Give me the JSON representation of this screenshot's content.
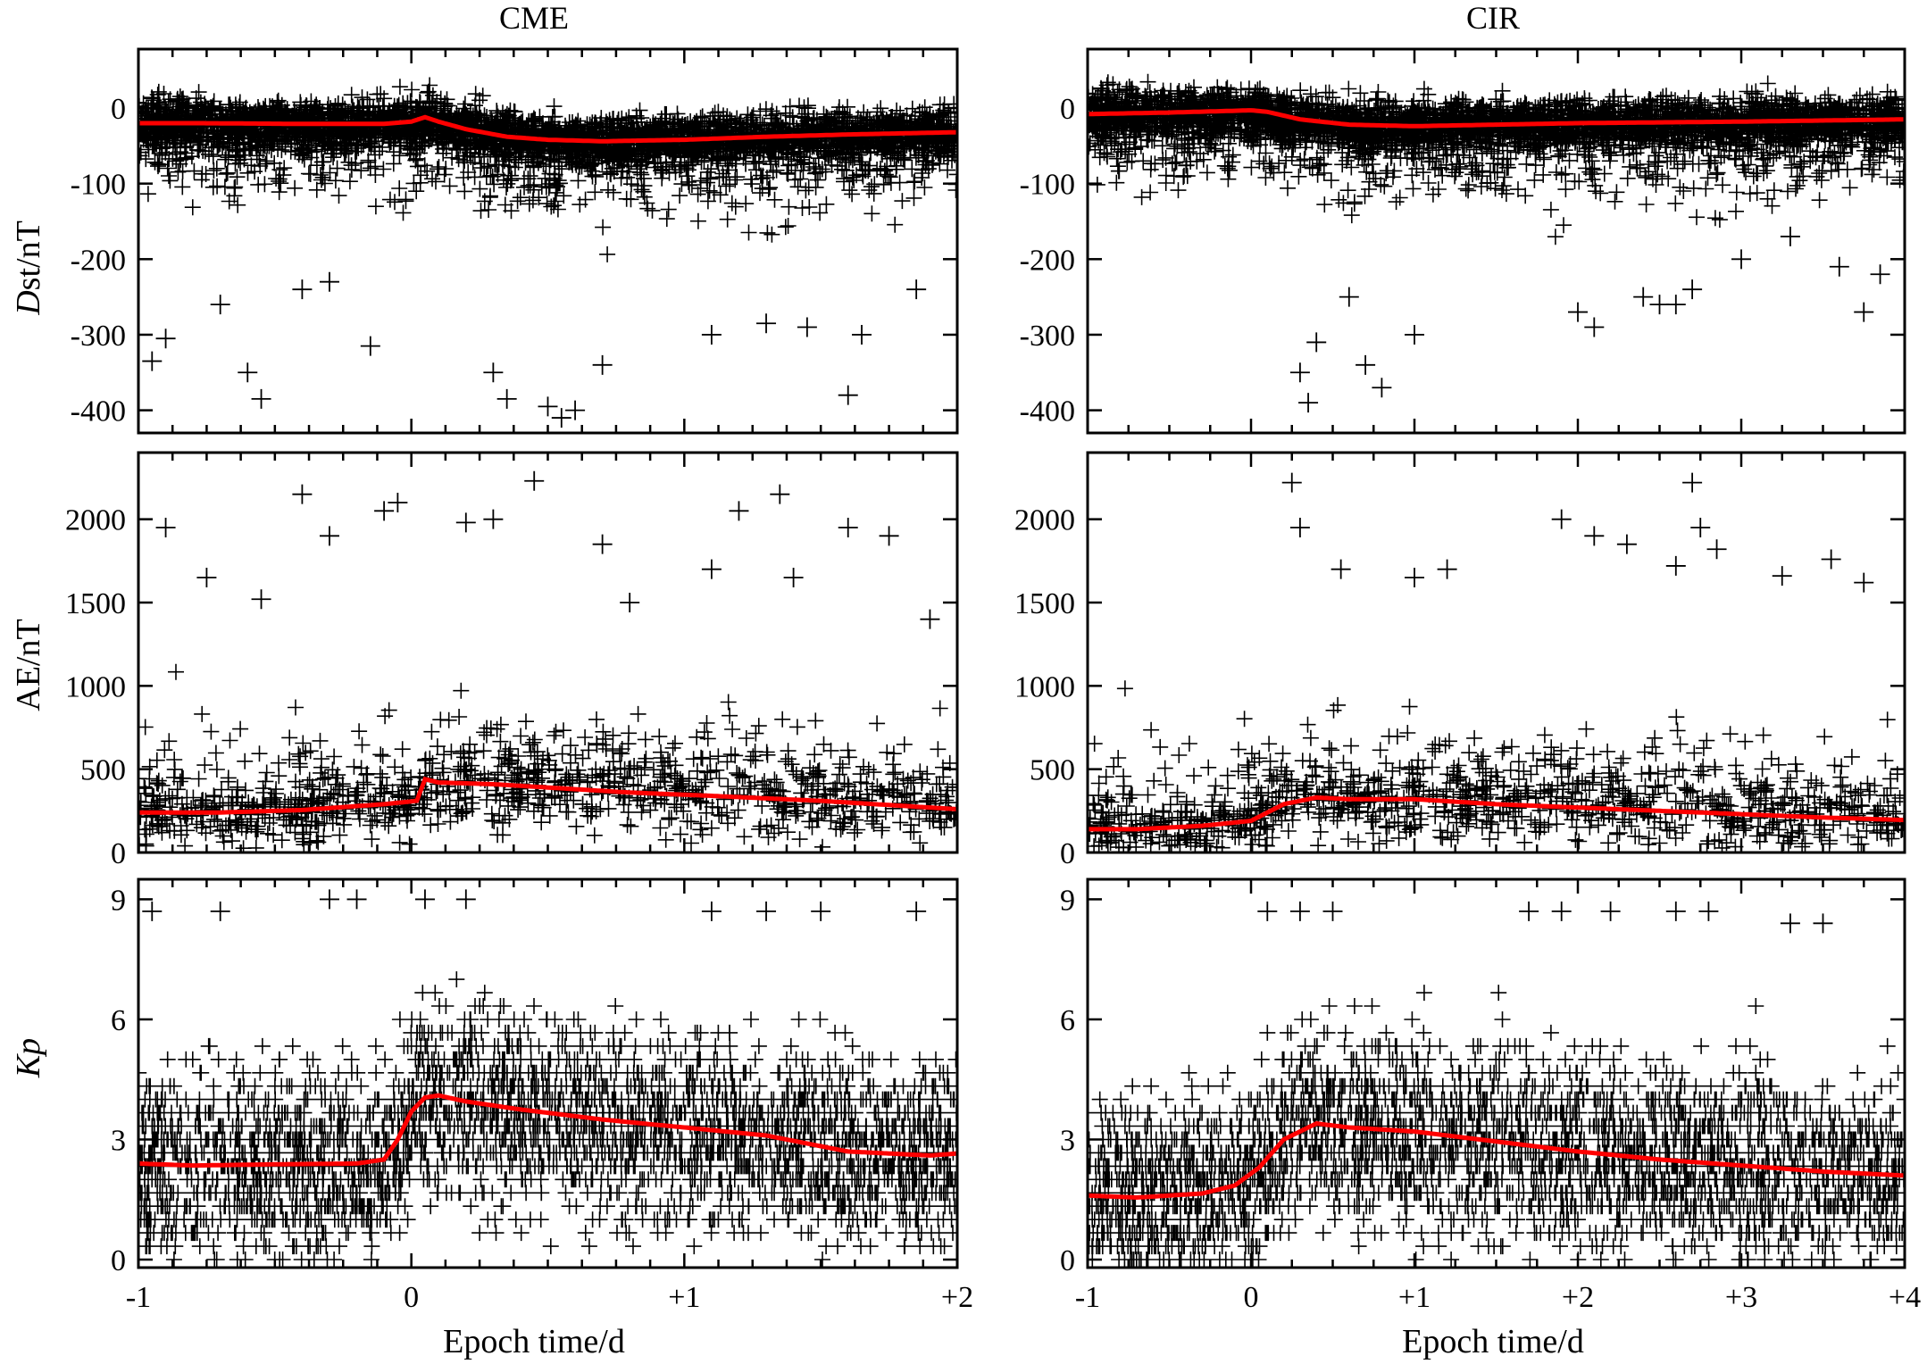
{
  "figure": {
    "columns": [
      "CME",
      "CIR"
    ],
    "xlabel": "Epoch time/d",
    "ylabels": [
      {
        "italic": "D",
        "rest": "st/nT"
      },
      {
        "italic": "",
        "rest": "AE/nT"
      },
      {
        "italic": "Kp",
        "rest": ""
      }
    ]
  },
  "colors": {
    "scatter": "#000000",
    "mean_line": "#ff0000",
    "frame": "#000000"
  },
  "chart_data": [
    {
      "type": "scatter",
      "panel": "CME Dst",
      "column_title": "CME",
      "ylabel": "Dst/nT",
      "xlim": [
        -1,
        2
      ],
      "ylim": [
        -430,
        78
      ],
      "xticks": [
        "-1",
        "0",
        "+1",
        "+2"
      ],
      "yticks": [
        {
          "v": 0,
          "label": "0"
        },
        {
          "v": -100,
          "label": "-100"
        },
        {
          "v": -200,
          "label": "-200"
        },
        {
          "v": -300,
          "label": "-300"
        },
        {
          "v": -400,
          "label": "-400"
        }
      ],
      "scatter_marker": "+",
      "mean_curve": {
        "x": [
          -1,
          -0.8,
          -0.4,
          -0.1,
          0,
          0.05,
          0.1,
          0.2,
          0.35,
          0.5,
          0.7,
          1.0,
          1.3,
          1.6,
          2.0
        ],
        "y": [
          -20,
          -20,
          -21,
          -21,
          -18,
          -12,
          -18,
          -28,
          -38,
          -42,
          -44,
          -42,
          -38,
          -35,
          -32
        ]
      },
      "sample_points": {
        "x": [
          -0.95,
          -0.9,
          -0.7,
          -0.6,
          -0.55,
          -0.4,
          -0.3,
          -0.15,
          0.3,
          0.35,
          0.5,
          0.55,
          0.6,
          0.7,
          1.1,
          1.3,
          1.45,
          1.6,
          1.65,
          1.85
        ],
        "y": [
          -335,
          -305,
          -260,
          -350,
          -385,
          -240,
          -230,
          -315,
          -350,
          -385,
          -395,
          -410,
          -400,
          -340,
          -300,
          -285,
          -290,
          -380,
          -300,
          -240
        ]
      }
    },
    {
      "type": "scatter",
      "panel": "CME AE",
      "column_title": "",
      "ylabel": "AE/nT",
      "xlim": [
        -1,
        2
      ],
      "ylim": [
        0,
        2400
      ],
      "xticks": [
        "-1",
        "0",
        "+1",
        "+2"
      ],
      "yticks": [
        {
          "v": 0,
          "label": "0"
        },
        {
          "v": 500,
          "label": "500"
        },
        {
          "v": 1000,
          "label": "1000"
        },
        {
          "v": 1500,
          "label": "1500"
        },
        {
          "v": 2000,
          "label": "2000"
        }
      ],
      "scatter_marker": "+",
      "mean_curve": {
        "x": [
          -1,
          -0.7,
          -0.4,
          -0.1,
          0.02,
          0.05,
          0.1,
          0.3,
          0.5,
          0.8,
          1.1,
          1.5,
          1.8,
          2.0
        ],
        "y": [
          240,
          240,
          255,
          290,
          310,
          440,
          420,
          410,
          390,
          360,
          340,
          310,
          280,
          260
        ]
      },
      "sample_points": {
        "x": [
          -0.9,
          -0.75,
          -0.55,
          -0.4,
          -0.3,
          -0.1,
          -0.05,
          0.2,
          0.3,
          0.45,
          0.7,
          0.8,
          1.1,
          1.2,
          1.35,
          1.4,
          1.6,
          1.75,
          1.9
        ],
        "y": [
          1950,
          1650,
          1520,
          2150,
          1900,
          2050,
          2100,
          1980,
          2000,
          2230,
          1850,
          1500,
          1700,
          2050,
          2150,
          1650,
          1950,
          1900,
          1400
        ]
      }
    },
    {
      "type": "scatter",
      "panel": "CME Kp",
      "column_title": "",
      "ylabel": "Kp",
      "xlim": [
        -1,
        2
      ],
      "ylim": [
        -0.2,
        9.5
      ],
      "xticks": [
        "-1",
        "0",
        "+1",
        "+2"
      ],
      "yticks": [
        {
          "v": 0,
          "label": "0"
        },
        {
          "v": 3,
          "label": "3"
        },
        {
          "v": 6,
          "label": "6"
        },
        {
          "v": 9,
          "label": "9"
        }
      ],
      "scatter_marker": "+",
      "mean_curve": {
        "x": [
          -1,
          -0.8,
          -0.5,
          -0.2,
          -0.1,
          -0.05,
          0,
          0.05,
          0.1,
          0.2,
          0.4,
          0.7,
          1.0,
          1.3,
          1.6,
          1.9,
          2.0
        ],
        "y": [
          2.4,
          2.35,
          2.38,
          2.4,
          2.5,
          3.0,
          3.7,
          4.05,
          4.1,
          3.95,
          3.75,
          3.5,
          3.3,
          3.1,
          2.7,
          2.6,
          2.65
        ]
      },
      "sample_points": {
        "x": [
          -0.95,
          -0.7,
          -0.3,
          -0.2,
          0.05,
          0.2,
          1.1,
          1.3,
          1.5,
          1.85
        ],
        "y": [
          8.7,
          8.7,
          9.0,
          9.0,
          9.0,
          9.0,
          8.7,
          8.7,
          8.7,
          8.7
        ]
      }
    },
    {
      "type": "scatter",
      "panel": "CIR Dst",
      "column_title": "CIR",
      "ylabel": "Dst/nT",
      "xlim": [
        -1,
        4
      ],
      "ylim": [
        -430,
        78
      ],
      "xticks": [
        "-1",
        "0",
        "+1",
        "+2",
        "+3",
        "+4"
      ],
      "yticks": [
        {
          "v": 0,
          "label": "0"
        },
        {
          "v": -100,
          "label": "-100"
        },
        {
          "v": -200,
          "label": "-200"
        },
        {
          "v": -300,
          "label": "-300"
        },
        {
          "v": -400,
          "label": "-400"
        }
      ],
      "scatter_marker": "+",
      "mean_curve": {
        "x": [
          -1,
          -0.5,
          0,
          0.1,
          0.3,
          0.6,
          1.0,
          1.5,
          2.0,
          3.0,
          4.0
        ],
        "y": [
          -8,
          -6,
          -3,
          -5,
          -15,
          -22,
          -24,
          -22,
          -20,
          -18,
          -15
        ]
      },
      "sample_points": {
        "x": [
          0.3,
          0.35,
          0.4,
          0.6,
          0.7,
          0.8,
          1.0,
          2.0,
          2.1,
          2.4,
          2.5,
          2.6,
          2.7,
          3.0,
          3.3,
          3.6,
          3.75,
          3.85
        ],
        "y": [
          -350,
          -390,
          -310,
          -250,
          -340,
          -370,
          -300,
          -270,
          -290,
          -250,
          -260,
          -260,
          -240,
          -200,
          -170,
          -210,
          -270,
          -220
        ]
      }
    },
    {
      "type": "scatter",
      "panel": "CIR AE",
      "column_title": "",
      "ylabel": "AE/nT",
      "xlim": [
        -1,
        4
      ],
      "ylim": [
        0,
        2400
      ],
      "xticks": [
        "-1",
        "0",
        "+1",
        "+2",
        "+3",
        "+4"
      ],
      "yticks": [
        {
          "v": 0,
          "label": "0"
        },
        {
          "v": 500,
          "label": "500"
        },
        {
          "v": 1000,
          "label": "1000"
        },
        {
          "v": 1500,
          "label": "1500"
        },
        {
          "v": 2000,
          "label": "2000"
        }
      ],
      "scatter_marker": "+",
      "mean_curve": {
        "x": [
          -1,
          -0.7,
          -0.3,
          0,
          0.2,
          0.4,
          0.6,
          1.0,
          1.5,
          2.0,
          2.5,
          3.0,
          3.5,
          4.0
        ],
        "y": [
          140,
          140,
          160,
          190,
          290,
          330,
          320,
          320,
          290,
          270,
          250,
          230,
          210,
          195
        ]
      },
      "sample_points": {
        "x": [
          0.25,
          0.3,
          0.55,
          1.0,
          1.2,
          1.9,
          2.1,
          2.3,
          2.6,
          2.7,
          2.75,
          2.85,
          3.25,
          3.55,
          3.75
        ],
        "y": [
          2220,
          1950,
          1700,
          1650,
          1700,
          2000,
          1900,
          1850,
          1720,
          2220,
          1950,
          1820,
          1660,
          1760,
          1620
        ]
      }
    },
    {
      "type": "scatter",
      "panel": "CIR Kp",
      "column_title": "",
      "ylabel": "Kp",
      "xlim": [
        -1,
        4
      ],
      "ylim": [
        -0.2,
        9.5
      ],
      "xticks": [
        "-1",
        "0",
        "+1",
        "+2",
        "+3",
        "+4"
      ],
      "yticks": [
        {
          "v": 0,
          "label": "0"
        },
        {
          "v": 3,
          "label": "3"
        },
        {
          "v": 6,
          "label": "6"
        },
        {
          "v": 9,
          "label": "9"
        }
      ],
      "scatter_marker": "+",
      "mean_curve": {
        "x": [
          -1,
          -0.7,
          -0.3,
          -0.1,
          0.05,
          0.2,
          0.4,
          0.6,
          1.0,
          1.5,
          2.0,
          2.5,
          3.0,
          3.5,
          4.0
        ],
        "y": [
          1.6,
          1.55,
          1.65,
          1.85,
          2.3,
          3.0,
          3.4,
          3.3,
          3.2,
          2.95,
          2.7,
          2.5,
          2.35,
          2.2,
          2.1
        ]
      },
      "sample_points": {
        "x": [
          0.1,
          0.3,
          0.5,
          1.7,
          1.9,
          2.2,
          2.6,
          2.8,
          3.3,
          3.5
        ],
        "y": [
          8.7,
          8.7,
          8.7,
          8.7,
          8.7,
          8.7,
          8.7,
          8.7,
          8.4,
          8.4
        ]
      }
    }
  ]
}
